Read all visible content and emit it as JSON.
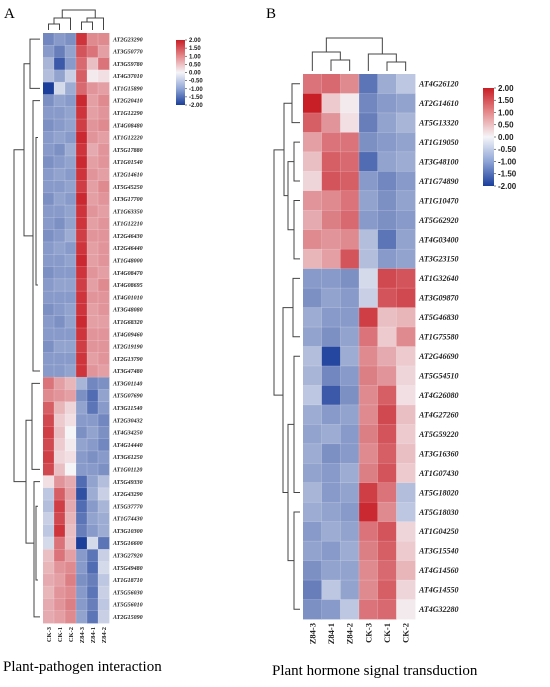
{
  "panel_a": {
    "letter": "A",
    "caption": "Plant-pathogen interaction",
    "colorbar_ticks": [
      "2.00",
      "1.50",
      "1.00",
      "0.50",
      "0.00",
      "-0.50",
      "-1.00",
      "-1.50",
      "-2.00"
    ]
  },
  "panel_b": {
    "letter": "B",
    "caption": "Plant hormone signal transduction",
    "colorbar_ticks": [
      "2.00",
      "1.50",
      "1.00",
      "0.50",
      "0.00",
      "-0.50",
      "-1.00",
      "-1.50",
      "-2.00"
    ]
  },
  "chart_data": [
    {
      "type": "heatmap",
      "title": "Plant-pathogen interaction",
      "columns": [
        "CK-3",
        "CK-1",
        "CK-2",
        "Z84-3",
        "Z84-1",
        "Z84-2"
      ],
      "rows": [
        "AT2G23290",
        "AT3G50770",
        "AT3G59780",
        "AT4G37010",
        "AT1G15890",
        "AT2G20410",
        "AT1G12290",
        "AT4G08480",
        "AT1G12220",
        "AT5G17880",
        "AT1G01540",
        "AT2G14610",
        "AT5G45250",
        "AT3G17700",
        "AT1G63350",
        "AT1G12210",
        "AT2G46430",
        "AT2G46440",
        "AT1G48000",
        "AT4G08470",
        "AT4G08695",
        "AT4G01010",
        "AT3G48080",
        "AT1G68320",
        "AT4G09460",
        "AT2G19190",
        "AT2G13790",
        "AT3G47480",
        "AT3G01140",
        "AT5G07690",
        "AT3G11540",
        "AT2G30432",
        "AT4G34250",
        "AT4G14440",
        "AT3G61250",
        "AT1G01120",
        "AT5G49330",
        "AT2G43290",
        "AT5G37770",
        "AT1G74430",
        "AT3G10300",
        "AT5G16600",
        "AT3G27920",
        "AT5G49480",
        "AT1G18710",
        "AT5G56030",
        "AT5G56010",
        "AT2G15090"
      ],
      "values": [
        [
          -1.2,
          -1.0,
          -1.1,
          1.8,
          1.0,
          1.0
        ],
        [
          -1.0,
          -1.3,
          -0.9,
          1.5,
          1.2,
          0.8
        ],
        [
          -0.7,
          -1.7,
          -1.0,
          1.3,
          0.5,
          1.2
        ],
        [
          -0.6,
          -0.9,
          -0.4,
          1.4,
          0.1,
          0.2
        ],
        [
          -2.0,
          -0.3,
          -0.8,
          1.3,
          0.9,
          0.8
        ],
        [
          -1.1,
          -0.9,
          -1.0,
          1.9,
          0.8,
          1.0
        ],
        [
          -1.0,
          -1.0,
          -0.9,
          1.8,
          0.8,
          0.9
        ],
        [
          -1.1,
          -1.0,
          -0.9,
          1.7,
          0.9,
          1.0
        ],
        [
          -1.0,
          -0.9,
          -1.0,
          1.9,
          0.9,
          0.8
        ],
        [
          -1.0,
          -1.1,
          -0.8,
          1.8,
          0.7,
          0.9
        ],
        [
          -1.1,
          -1.0,
          -0.9,
          1.9,
          0.8,
          0.9
        ],
        [
          -1.0,
          -0.9,
          -1.0,
          1.8,
          0.9,
          0.8
        ],
        [
          -1.0,
          -1.0,
          -0.9,
          1.7,
          0.8,
          1.0
        ],
        [
          -1.1,
          -0.9,
          -1.0,
          1.9,
          0.8,
          0.9
        ],
        [
          -1.0,
          -1.0,
          -0.9,
          1.8,
          0.9,
          0.8
        ],
        [
          -1.0,
          -1.1,
          -0.9,
          1.8,
          0.8,
          0.9
        ],
        [
          -1.1,
          -1.0,
          -0.8,
          1.7,
          0.9,
          0.9
        ],
        [
          -1.0,
          -0.9,
          -1.0,
          1.8,
          0.8,
          0.9
        ],
        [
          -1.0,
          -1.0,
          -0.9,
          1.9,
          0.8,
          0.9
        ],
        [
          -1.1,
          -1.0,
          -1.0,
          1.8,
          0.9,
          0.8
        ],
        [
          -1.0,
          -0.9,
          -0.9,
          1.7,
          0.8,
          1.0
        ],
        [
          -1.0,
          -1.0,
          -1.0,
          1.8,
          0.9,
          0.9
        ],
        [
          -1.1,
          -1.0,
          -0.9,
          1.8,
          0.8,
          0.9
        ],
        [
          -1.0,
          -1.1,
          -0.9,
          1.9,
          0.8,
          0.8
        ],
        [
          -1.0,
          -1.0,
          -1.0,
          1.8,
          0.9,
          0.9
        ],
        [
          -1.1,
          -0.9,
          -0.9,
          1.7,
          0.9,
          0.9
        ],
        [
          -1.0,
          -1.0,
          -1.0,
          1.8,
          0.8,
          0.9
        ],
        [
          -1.0,
          -1.0,
          -0.9,
          1.8,
          0.9,
          0.8
        ],
        [
          1.2,
          0.8,
          0.6,
          -0.7,
          -1.2,
          -1.1
        ],
        [
          1.0,
          0.9,
          0.8,
          -1.1,
          -1.5,
          -0.9
        ],
        [
          1.4,
          0.6,
          0.3,
          -0.9,
          -1.4,
          -1.0
        ],
        [
          1.6,
          0.4,
          0.2,
          -1.0,
          -1.0,
          -1.2
        ],
        [
          1.7,
          0.5,
          0.0,
          -1.1,
          -0.9,
          -1.1
        ],
        [
          1.6,
          0.4,
          0.1,
          -0.9,
          -1.0,
          -1.2
        ],
        [
          1.7,
          0.3,
          0.2,
          -1.0,
          -1.1,
          -1.0
        ],
        [
          1.6,
          0.5,
          0.0,
          -1.0,
          -1.0,
          -1.1
        ],
        [
          0.2,
          0.9,
          0.7,
          -1.5,
          -0.9,
          -0.6
        ],
        [
          -0.5,
          1.4,
          0.8,
          -1.8,
          -0.8,
          -0.4
        ],
        [
          -0.6,
          1.7,
          0.7,
          -1.5,
          -1.0,
          -0.7
        ],
        [
          -0.4,
          1.6,
          0.6,
          -1.4,
          -0.9,
          -0.8
        ],
        [
          -0.5,
          1.8,
          0.5,
          -1.3,
          -1.0,
          -0.8
        ],
        [
          -0.3,
          1.2,
          0.5,
          -2.0,
          -0.3,
          -1.4
        ],
        [
          0.5,
          1.2,
          0.8,
          -1.0,
          -1.4,
          -0.4
        ],
        [
          0.6,
          0.9,
          1.0,
          -1.0,
          -1.5,
          -0.3
        ],
        [
          0.7,
          0.8,
          1.1,
          -1.1,
          -1.3,
          -0.5
        ],
        [
          0.6,
          0.9,
          1.0,
          -1.0,
          -1.4,
          -0.4
        ],
        [
          0.7,
          0.9,
          1.1,
          -1.0,
          -1.3,
          -0.5
        ],
        [
          0.7,
          0.8,
          1.0,
          -0.9,
          -1.4,
          -0.4
        ]
      ],
      "colorbar": {
        "min": -2.0,
        "max": 2.0,
        "low_color": "#1a3e9a",
        "mid_color": "#f5f5f8",
        "high_color": "#c81e26"
      }
    },
    {
      "type": "heatmap",
      "title": "Plant hormone signal transduction",
      "columns": [
        "Z84-3",
        "Z84-1",
        "Z84-2",
        "CK-3",
        "CK-1",
        "CK-2"
      ],
      "rows": [
        "AT4G26120",
        "AT2G14610",
        "AT5G13320",
        "AT1G19050",
        "AT3G48100",
        "AT1G74890",
        "AT1G10470",
        "AT5G62920",
        "AT4G03400",
        "AT3G23150",
        "AT1G32640",
        "AT3G09870",
        "AT5G46830",
        "AT1G75580",
        "AT2G46690",
        "AT5G54510",
        "AT4G26080",
        "AT4G27260",
        "AT5G59220",
        "AT3G16360",
        "AT1G07430",
        "AT5G18020",
        "AT5G18030",
        "AT1G04250",
        "AT3G15540",
        "AT4G14560",
        "AT4G14550",
        "AT4G32280"
      ],
      "values": [
        [
          1.2,
          1.3,
          1.0,
          -1.4,
          -0.8,
          -0.5
        ],
        [
          2.0,
          0.4,
          0.1,
          -1.2,
          -1.0,
          -0.9
        ],
        [
          1.4,
          0.9,
          0.2,
          -1.3,
          -0.9,
          -0.7
        ],
        [
          0.8,
          1.2,
          1.2,
          -1.1,
          -1.0,
          -0.9
        ],
        [
          0.5,
          1.4,
          1.3,
          -1.5,
          -0.9,
          -0.8
        ],
        [
          0.3,
          1.5,
          1.4,
          -1.0,
          -1.2,
          -1.0
        ],
        [
          0.9,
          1.0,
          1.2,
          -0.9,
          -1.1,
          -0.9
        ],
        [
          0.7,
          1.1,
          1.3,
          -1.0,
          -1.1,
          -1.0
        ],
        [
          1.0,
          0.9,
          1.0,
          -0.6,
          -1.4,
          -0.9
        ],
        [
          0.6,
          0.8,
          1.5,
          -0.6,
          -1.0,
          -0.9
        ],
        [
          -1.0,
          -1.0,
          -1.1,
          -0.3,
          1.6,
          1.5
        ],
        [
          -1.1,
          -0.9,
          -1.0,
          -0.4,
          1.5,
          1.6
        ],
        [
          -0.8,
          -1.0,
          -1.0,
          1.7,
          0.5,
          0.6
        ],
        [
          -0.9,
          -1.1,
          -0.9,
          1.2,
          0.4,
          1.0
        ],
        [
          -0.6,
          -1.9,
          -0.8,
          1.0,
          0.7,
          0.4
        ],
        [
          -0.7,
          -1.2,
          -1.0,
          1.1,
          0.9,
          0.3
        ],
        [
          -0.5,
          -1.7,
          -1.1,
          1.0,
          1.4,
          0.2
        ],
        [
          -0.8,
          -1.0,
          -0.9,
          1.0,
          1.6,
          0.5
        ],
        [
          -0.9,
          -0.8,
          -1.0,
          1.1,
          1.5,
          0.4
        ],
        [
          -0.8,
          -1.1,
          -1.0,
          1.0,
          1.4,
          0.5
        ],
        [
          -0.9,
          -1.0,
          -0.8,
          1.1,
          1.5,
          0.4
        ],
        [
          -0.7,
          -1.0,
          -0.9,
          1.7,
          1.2,
          -0.6
        ],
        [
          -0.8,
          -0.9,
          -1.0,
          1.9,
          1.0,
          -0.5
        ],
        [
          -1.0,
          -0.8,
          -0.9,
          1.2,
          1.5,
          0.3
        ],
        [
          -0.9,
          -1.0,
          -0.8,
          1.1,
          1.4,
          0.4
        ],
        [
          -1.1,
          -0.9,
          -0.9,
          1.0,
          1.3,
          0.6
        ],
        [
          -1.3,
          -0.5,
          -0.9,
          1.0,
          1.4,
          0.3
        ],
        [
          -1.1,
          -1.0,
          -0.5,
          1.2,
          1.3,
          0.1
        ]
      ],
      "colorbar": {
        "min": -2.0,
        "max": 2.0,
        "low_color": "#1a3e9a",
        "mid_color": "#f5f5f8",
        "high_color": "#c81e26"
      }
    }
  ]
}
